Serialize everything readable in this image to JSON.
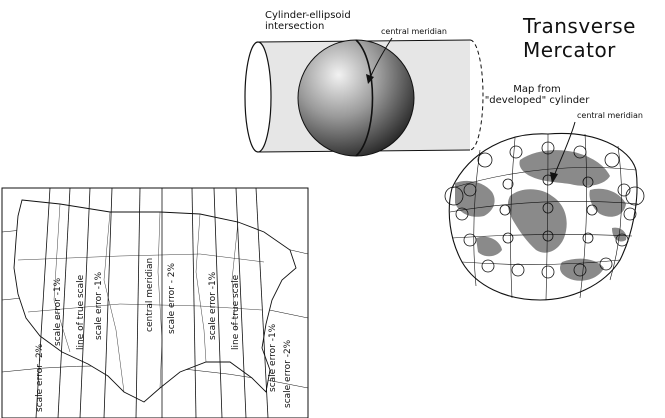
{
  "title": {
    "line1": "Transverse",
    "line2": "Mercator"
  },
  "cylinder": {
    "label_line1": "Cylinder-ellipsoid",
    "label_line2": "intersection",
    "meridian_label": "central meridian"
  },
  "world_map": {
    "label_line1": "Map from",
    "label_line2": "\"developed\" cylinder",
    "meridian_label": "central meridian"
  },
  "us_map": {
    "line_labels": [
      "scale error -2%",
      "scale error -1%",
      "line of true scale",
      "scale error -1%",
      "central meridian",
      "scale error - 2%",
      "scale error -1%",
      "line of true scale",
      "scale error -1%",
      "scale error -2%"
    ]
  },
  "colors": {
    "land": "#8a8a8a",
    "ink": "#111111",
    "cylinder_fill": "#e6e6e6"
  }
}
